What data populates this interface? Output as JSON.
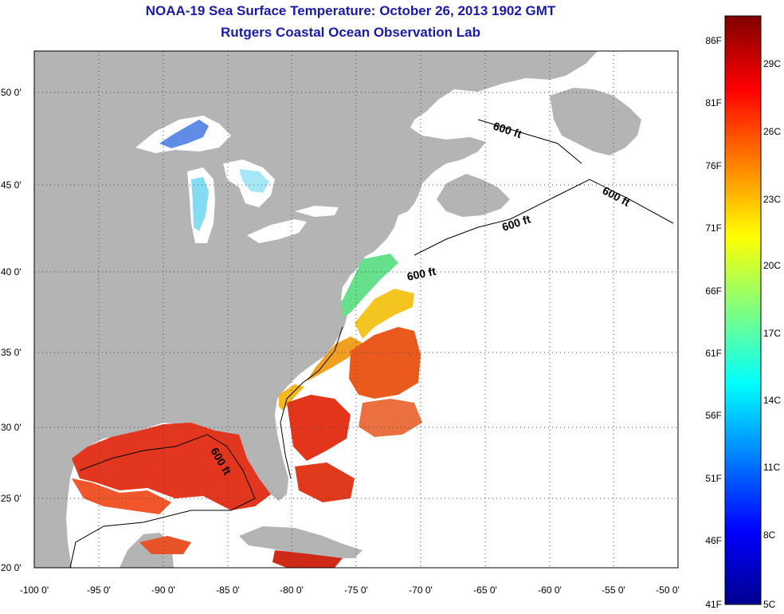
{
  "title": "NOAA-19 Sea Surface Temperature:  October 26, 2013 1902 GMT",
  "subtitle": "Rutgers Coastal Ocean Observation Lab",
  "map": {
    "lon_range": [
      -100,
      -50
    ],
    "lat_range": [
      20,
      52
    ],
    "lon_ticks": [
      "-100 0'",
      "-95 0'",
      "-90 0'",
      "-85 0'",
      "-80 0'",
      "-75 0'",
      "-70 0'",
      "-65 0'",
      "-60 0'",
      "-55 0'",
      "-50 0'"
    ],
    "lat_ticks": [
      "50 0'",
      "45 0'",
      "40 0'",
      "35 0'",
      "30 0'",
      "25 0'",
      "20 0'"
    ],
    "contour_labels": [
      "600 ft",
      "600 ft",
      "600 ft",
      "600 ft",
      "600 ft"
    ],
    "colors": {
      "land": "#b4b4b4",
      "ocean_nodata": "#ffffff",
      "title": "#1a1aa8"
    }
  },
  "colorbar": {
    "f_labels": [
      "86F",
      "81F",
      "76F",
      "71F",
      "66F",
      "61F",
      "56F",
      "51F",
      "46F",
      "41F"
    ],
    "c_labels": [
      "29C",
      "26C",
      "23C",
      "20C",
      "17C",
      "14C",
      "11C",
      "8C",
      "5C"
    ],
    "range_c": [
      5,
      31
    ],
    "colormap": "jet"
  }
}
